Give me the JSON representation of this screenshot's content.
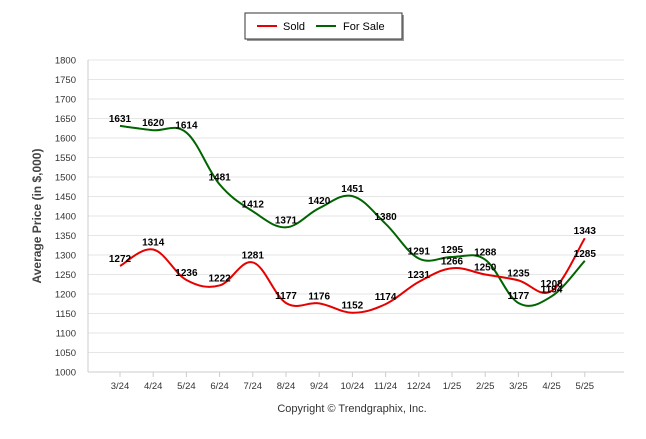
{
  "chart_data": {
    "type": "line",
    "title": "",
    "xlabel": "",
    "ylabel": "Average Price (in $,000)",
    "categories": [
      "3/24",
      "4/24",
      "5/24",
      "6/24",
      "7/24",
      "8/24",
      "9/24",
      "10/24",
      "11/24",
      "12/24",
      "1/25",
      "2/25",
      "3/25",
      "4/25",
      "5/25"
    ],
    "ylim": [
      1000,
      1800
    ],
    "yticks": [
      1000,
      1050,
      1100,
      1150,
      1200,
      1250,
      1300,
      1350,
      1400,
      1450,
      1500,
      1550,
      1600,
      1650,
      1700,
      1750,
      1800
    ],
    "grid": true,
    "legend_position": "top-center",
    "series": [
      {
        "name": "Sold",
        "color": "#e60000",
        "values": [
          1272,
          1314,
          1236,
          1222,
          1281,
          1177,
          1176,
          1152,
          1174,
          1231,
          1266,
          1250,
          1235,
          1208,
          1343
        ]
      },
      {
        "name": "For Sale",
        "color": "#006400",
        "values": [
          1631,
          1620,
          1614,
          1481,
          1412,
          1371,
          1420,
          1451,
          1380,
          1291,
          1295,
          1288,
          1177,
          1194,
          1285
        ]
      }
    ],
    "footer": "Copyright © Trendgraphix, Inc."
  }
}
